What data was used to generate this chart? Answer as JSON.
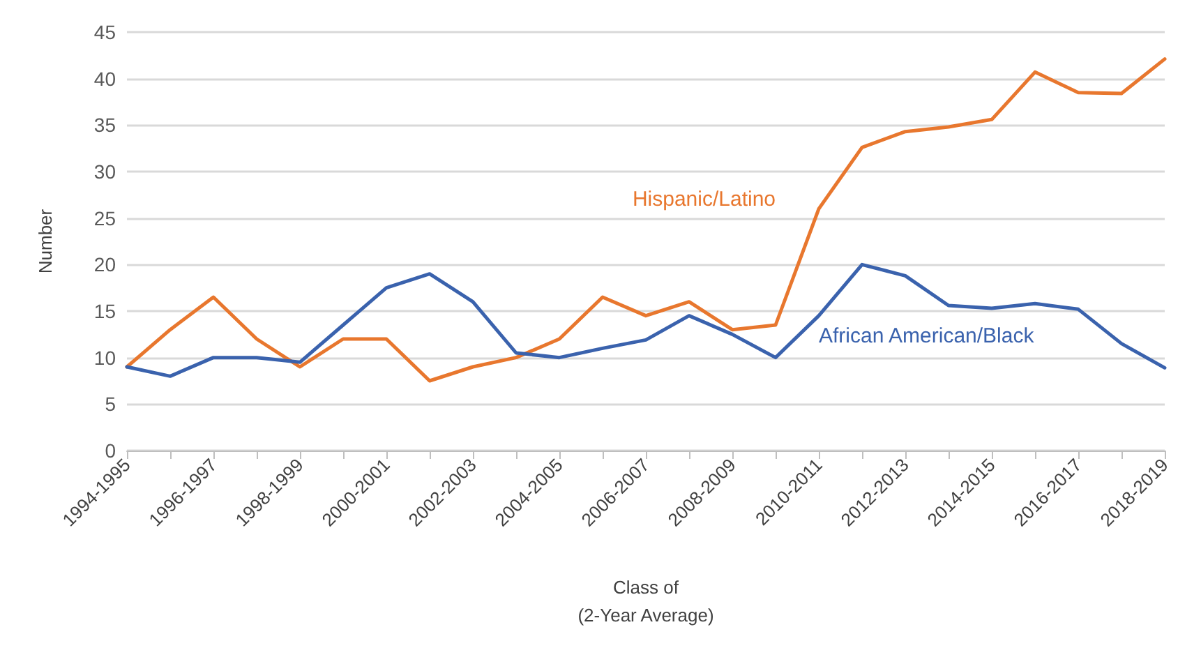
{
  "chart_data": {
    "type": "line",
    "categories": [
      "1994-1995",
      null,
      "1996-1997",
      null,
      "1998-1999",
      null,
      "2000-2001",
      null,
      "2002-2003",
      null,
      "2004-2005",
      null,
      "2006-2007",
      null,
      "2008-2009",
      null,
      "2010-2011",
      null,
      "2012-2013",
      null,
      "2014-2015",
      null,
      "2016-2017",
      null,
      "2018-2019"
    ],
    "series": [
      {
        "name": "Hispanic/Latino",
        "color": "#e8772e",
        "values": [
          9,
          13,
          16.5,
          12,
          9,
          12,
          12,
          7.5,
          9,
          10,
          12,
          16.5,
          14.5,
          16,
          13,
          13.5,
          26,
          32.6,
          34.3,
          34.8,
          35.6,
          40.7,
          38.5,
          38.4,
          42.1
        ]
      },
      {
        "name": "African American/Black",
        "color": "#3a62ad",
        "values": [
          9,
          8,
          10,
          10,
          9.5,
          13.5,
          17.5,
          19,
          16,
          10.5,
          10,
          11,
          11.9,
          14.5,
          12.5,
          10,
          14.5,
          20,
          18.8,
          15.6,
          15.3,
          15.8,
          15.2,
          11.5,
          8.9
        ]
      }
    ],
    "xlabel": "Class of\n(2-Year Average)",
    "ylabel": "Number",
    "ylim": [
      0,
      45
    ],
    "yticks": [
      0,
      5,
      10,
      15,
      20,
      25,
      30,
      35,
      40,
      45
    ],
    "grid": "y",
    "legend": false,
    "marker": "none",
    "line_style": "solid"
  }
}
